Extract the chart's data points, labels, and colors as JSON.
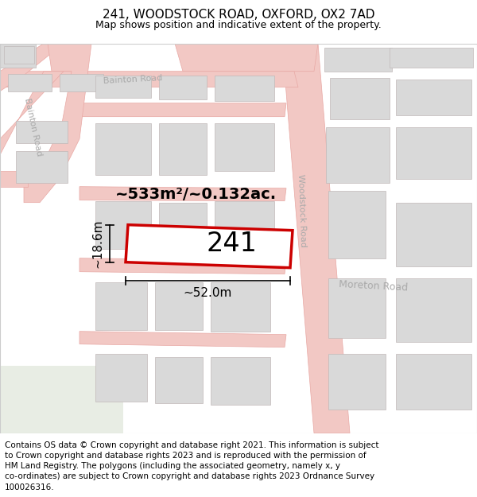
{
  "title": "241, WOODSTOCK ROAD, OXFORD, OX2 7AD",
  "subtitle": "Map shows position and indicative extent of the property.",
  "area_text": "~533m²/~0.132ac.",
  "width_label": "~52.0m",
  "height_label": "~18.6m",
  "property_number": "241",
  "map_bg": "#f7f6f4",
  "road_color": "#f2c8c4",
  "road_edge": "#e8a8a4",
  "property_fill": "#ffffff",
  "property_edge": "#cc0000",
  "building_fill": "#d9d9d9",
  "building_edge": "#c0b8b8",
  "green_area": "#e8ede4",
  "text_color": "#000000",
  "road_label_color": "#aaaaaa",
  "title_fontsize": 11,
  "subtitle_fontsize": 9,
  "area_fontsize": 14,
  "number_fontsize": 24,
  "dim_fontsize": 11,
  "road_label_fontsize": 8,
  "copyright_fontsize": 7.5,
  "copyright_lines": [
    "Contains OS data © Crown copyright and database right 2021. This information is subject",
    "to Crown copyright and database rights 2023 and is reproduced with the permission of",
    "HM Land Registry. The polygons (including the associated geometry, namely x, y",
    "co-ordinates) are subject to Crown copyright and database rights 2023 Ordnance Survey",
    "100026316."
  ]
}
